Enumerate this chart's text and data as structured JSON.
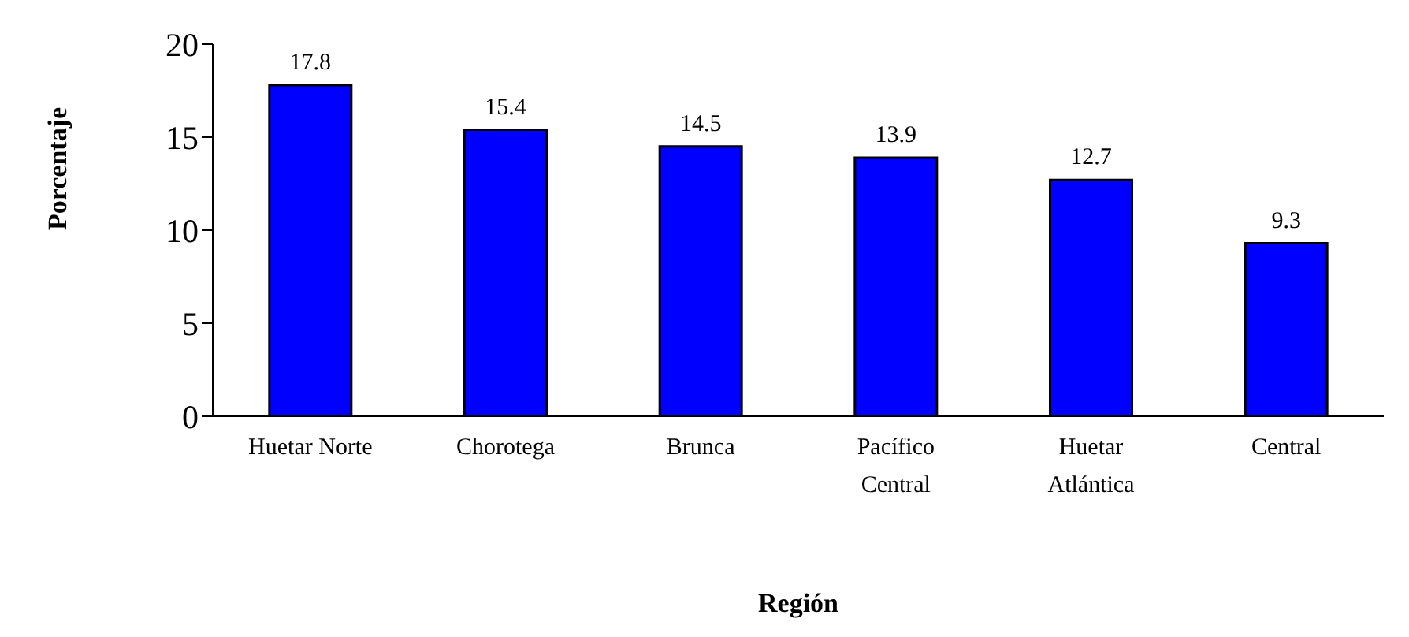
{
  "chart_data": {
    "type": "bar",
    "xlabel": "Región",
    "ylabel": "Porcentaje",
    "categories": [
      "Huetar Norte",
      "Chorotega",
      "Brunca",
      "Pacífico Central",
      "Huetar Atlántica",
      "Central"
    ],
    "values": [
      17.8,
      15.4,
      14.5,
      13.9,
      12.7,
      9.3
    ],
    "color": "#0000ff",
    "ylim": [
      0,
      20
    ],
    "yticks": [
      0,
      5,
      10,
      15,
      20
    ],
    "grid": false,
    "data_labels": true
  }
}
